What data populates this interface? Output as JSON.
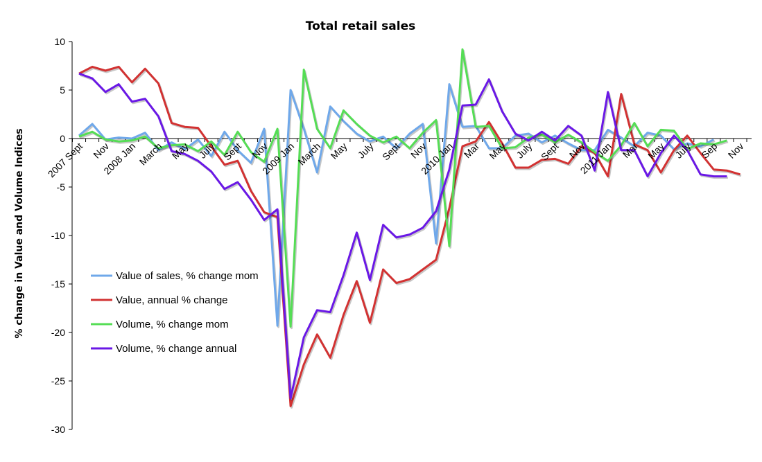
{
  "chart_data": {
    "type": "line",
    "title": "Total retail sales",
    "ylabel": "% change in Value and Volume Indices",
    "xlabel": "",
    "ylim": [
      -30,
      10
    ],
    "yticks": [
      10,
      5,
      0,
      -5,
      -10,
      -15,
      -20,
      -25,
      -30
    ],
    "grid": false,
    "legend_position": "left-center",
    "x_tick_labels": [
      {
        "index": 0,
        "label": "2007 Sept"
      },
      {
        "index": 2,
        "label": "Nov"
      },
      {
        "index": 4,
        "label": "2008 Jan"
      },
      {
        "index": 6,
        "label": "March"
      },
      {
        "index": 8,
        "label": "May"
      },
      {
        "index": 10,
        "label": "July"
      },
      {
        "index": 12,
        "label": "Sept"
      },
      {
        "index": 14,
        "label": "Nov"
      },
      {
        "index": 16,
        "label": "2009 Jan"
      },
      {
        "index": 18,
        "label": "March"
      },
      {
        "index": 20,
        "label": "May"
      },
      {
        "index": 22,
        "label": "July"
      },
      {
        "index": 24,
        "label": "Sept"
      },
      {
        "index": 26,
        "label": "Nov"
      },
      {
        "index": 28,
        "label": "2010 Jan"
      },
      {
        "index": 30,
        "label": "Mar"
      },
      {
        "index": 32,
        "label": "May"
      },
      {
        "index": 34,
        "label": "July"
      },
      {
        "index": 36,
        "label": "Sept"
      },
      {
        "index": 38,
        "label": "Nov"
      },
      {
        "index": 40,
        "label": "2011 Jan"
      },
      {
        "index": 42,
        "label": "Mar"
      },
      {
        "index": 44,
        "label": "May"
      },
      {
        "index": 46,
        "label": "July"
      },
      {
        "index": 48,
        "label": "Sep"
      },
      {
        "index": 50,
        "label": "Nov"
      }
    ],
    "series": [
      {
        "name": "Value of sales, % change mom",
        "color": "#6fa8ea",
        "values": [
          0.3,
          1.5,
          -0.1,
          0.1,
          0.0,
          0.6,
          -1.2,
          -0.4,
          -1.1,
          -0.1,
          -1.8,
          0.7,
          -1.2,
          -2.5,
          1.0,
          -19.3,
          5.0,
          1.0,
          -3.5,
          3.3,
          1.8,
          0.5,
          -0.3,
          0.2,
          -1.0,
          0.5,
          1.5,
          -10.8,
          5.6,
          1.2,
          1.3,
          -1.0,
          -1.0,
          0.3,
          0.5,
          -0.4,
          0.3,
          -0.5,
          -1.2,
          -1.2,
          0.9,
          0.1,
          -0.8,
          0.6,
          0.3,
          -1.1,
          -0.5,
          -0.8,
          -0.1
        ]
      },
      {
        "name": "Value, annual % change",
        "color": "#d23232",
        "values": [
          6.7,
          7.4,
          7.0,
          7.4,
          5.8,
          7.2,
          5.7,
          1.6,
          1.2,
          1.1,
          -0.8,
          -2.7,
          -2.3,
          -5.4,
          -7.6,
          -8.1,
          -27.6,
          -23.3,
          -20.2,
          -22.6,
          -18.2,
          -14.7,
          -19.0,
          -13.5,
          -14.9,
          -14.5,
          -13.5,
          -12.5,
          -7.2,
          -0.8,
          -0.3,
          1.7,
          -0.5,
          -3.0,
          -3.0,
          -2.2,
          -2.1,
          -2.6,
          -0.8,
          -1.5,
          -3.9,
          4.6,
          -0.6,
          -1.2,
          -3.5,
          -1.2,
          0.3,
          -1.5,
          -3.2,
          -3.3,
          -3.7
        ]
      },
      {
        "name": "Volume, % change mom",
        "color": "#55dd55",
        "values": [
          0.2,
          0.7,
          -0.1,
          -0.3,
          -0.2,
          0.2,
          -1.0,
          -0.7,
          -0.6,
          -1.3,
          -0.3,
          -1.7,
          0.7,
          -1.4,
          -2.4,
          1.0,
          -19.4,
          7.1,
          1.0,
          -1.0,
          2.9,
          1.5,
          0.3,
          -0.4,
          0.2,
          -1.0,
          0.6,
          1.9,
          -11.1,
          9.2,
          1.2,
          1.3,
          -1.0,
          -0.9,
          0.1,
          0.4,
          -0.4,
          0.4,
          -0.4,
          -1.4,
          -2.3,
          -0.7,
          1.6,
          -0.8,
          0.9,
          0.8,
          -1.1,
          -0.5,
          -0.6,
          -0.2
        ]
      },
      {
        "name": "Volume, % change annual",
        "color": "#6a18e6",
        "values": [
          6.7,
          6.2,
          4.8,
          5.6,
          3.8,
          4.1,
          2.3,
          -1.3,
          -1.6,
          -2.3,
          -3.4,
          -5.2,
          -4.5,
          -6.3,
          -8.4,
          -7.3,
          -26.8,
          -20.5,
          -17.7,
          -17.9,
          -14.1,
          -9.7,
          -14.6,
          -8.9,
          -10.2,
          -9.9,
          -9.2,
          -7.5,
          -3.2,
          3.4,
          3.5,
          6.1,
          2.8,
          0.5,
          -0.2,
          0.7,
          -0.2,
          1.3,
          0.3,
          -3.3,
          4.8,
          -1.2,
          -1.2,
          -3.9,
          -1.5,
          0.3,
          -1.2,
          -3.7,
          -3.9,
          -3.9
        ]
      }
    ]
  }
}
